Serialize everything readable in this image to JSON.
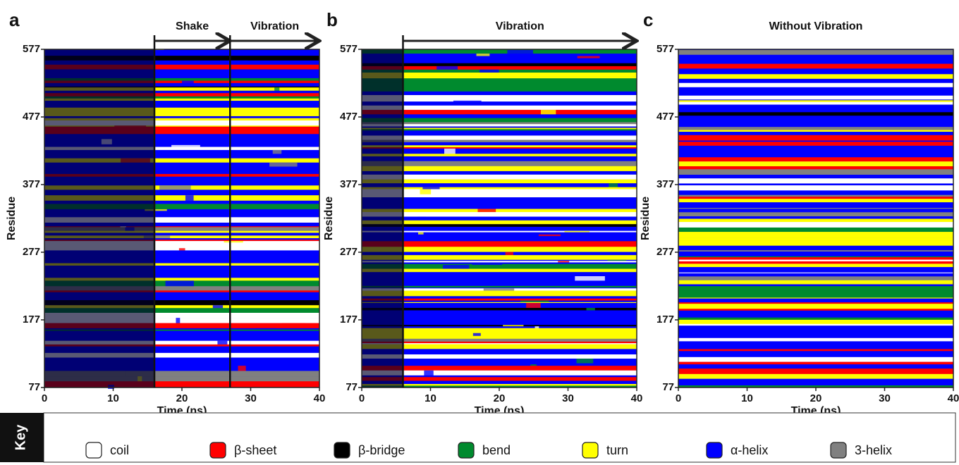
{
  "chart_data": [
    {
      "type": "dssp",
      "panel": "a",
      "xlabel": "Time (ns)",
      "ylabel": "Residue",
      "xlim": [
        0,
        40
      ],
      "xticks": [
        0,
        10,
        20,
        30,
        40
      ],
      "ylim": [
        77,
        577
      ],
      "yticks": [
        77,
        177,
        277,
        377,
        477,
        577
      ],
      "phases": [
        {
          "label": "Shake",
          "start": 16,
          "end": 27
        },
        {
          "label": "Vibration",
          "start": 27,
          "end": 40
        }
      ]
    },
    {
      "type": "dssp",
      "panel": "b",
      "xlabel": "Time (ns)",
      "ylabel": "Residue",
      "xlim": [
        0,
        40
      ],
      "xticks": [
        0,
        10,
        20,
        30,
        40
      ],
      "ylim": [
        77,
        577
      ],
      "yticks": [
        77,
        177,
        277,
        377,
        477,
        577
      ],
      "phases": [
        {
          "label": "Vibration",
          "start": 6,
          "end": 40
        }
      ]
    },
    {
      "type": "dssp",
      "panel": "c",
      "title": "Without Vibration",
      "xlabel": "Time (ns)",
      "ylabel": "Residue",
      "xlim": [
        0,
        40
      ],
      "xticks": [
        0,
        10,
        20,
        30,
        40
      ],
      "ylim": [
        77,
        577
      ],
      "yticks": [
        77,
        177,
        277,
        377,
        477,
        577
      ]
    }
  ],
  "key": {
    "title": "Key",
    "items": [
      {
        "label": "coil",
        "color": "#ffffff"
      },
      {
        "label": "β-sheet",
        "color": "#ff0000"
      },
      {
        "label": "β-bridge",
        "color": "#000000"
      },
      {
        "label": "bend",
        "color": "#008a2e"
      },
      {
        "label": "turn",
        "color": "#ffff00"
      },
      {
        "label": "α-helix",
        "color": "#0000ff"
      },
      {
        "label": "3-helix",
        "color": "#808080"
      }
    ]
  }
}
